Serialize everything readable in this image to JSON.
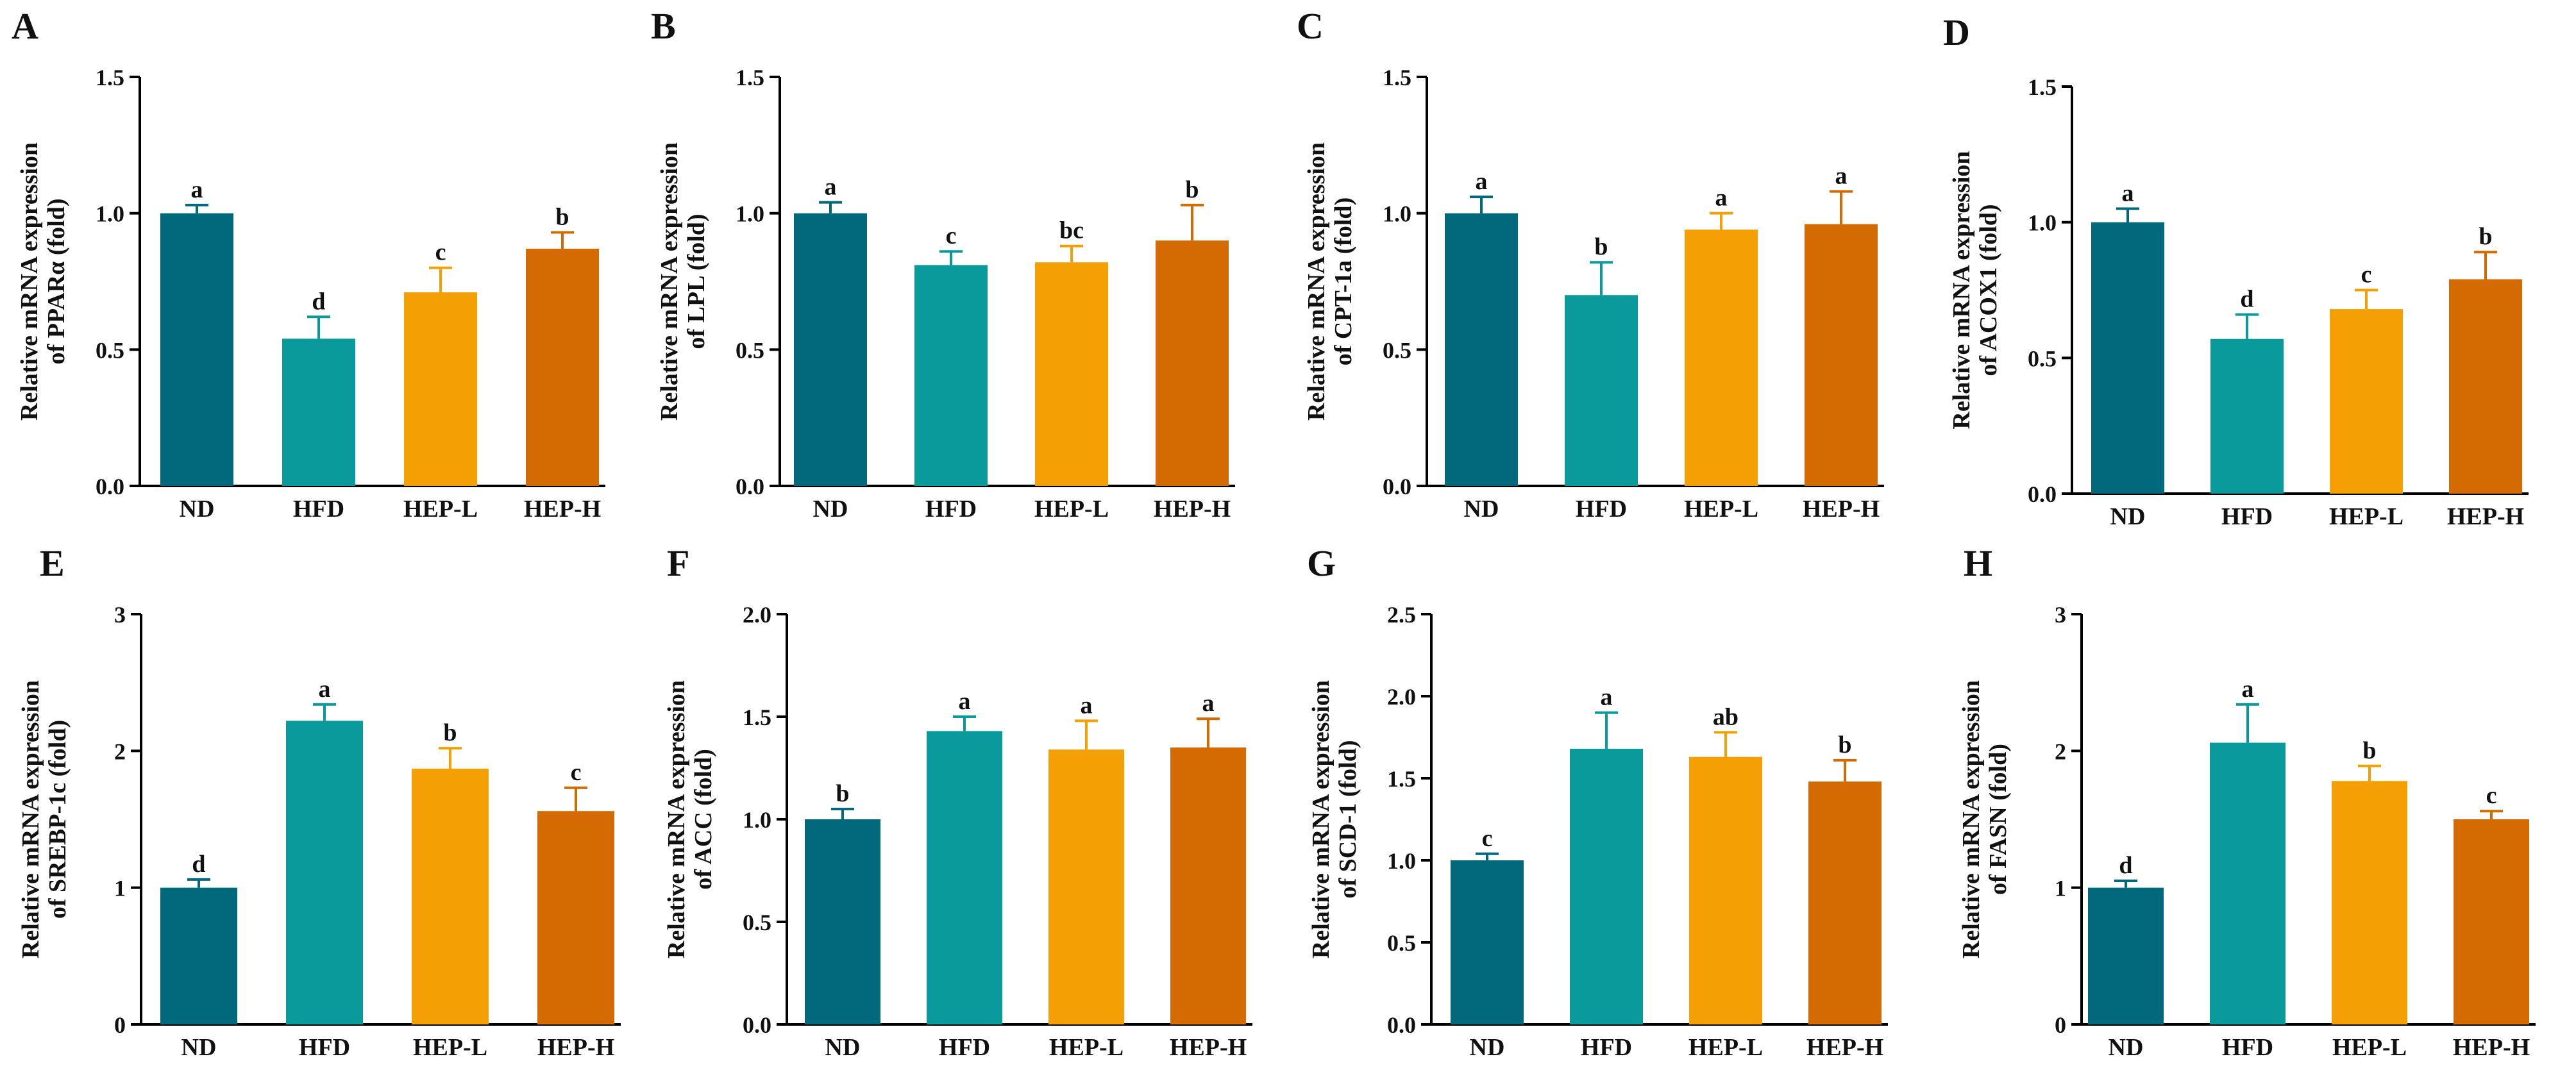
{
  "chart_data": [
    {
      "panel": "A",
      "type": "bar",
      "ylabel_line1": "Relative mRNA expression",
      "ylabel_line2": "of PPARα (fold)",
      "categories": [
        "ND",
        "HFD",
        "HEP-L",
        "HEP-H"
      ],
      "values": [
        1.0,
        0.54,
        0.71,
        0.87
      ],
      "errors": [
        0.03,
        0.08,
        0.09,
        0.06
      ],
      "letters": [
        "a",
        "d",
        "c",
        "b"
      ],
      "ylim": [
        0,
        1.5
      ],
      "ticks": [
        "0.0",
        "0.5",
        "1.0",
        "1.5"
      ]
    },
    {
      "panel": "B",
      "type": "bar",
      "ylabel_line1": "Relative mRNA expression",
      "ylabel_line2": "of LPL (fold)",
      "categories": [
        "ND",
        "HFD",
        "HEP-L",
        "HEP-H"
      ],
      "values": [
        1.0,
        0.81,
        0.82,
        0.9
      ],
      "errors": [
        0.04,
        0.05,
        0.06,
        0.13
      ],
      "letters": [
        "a",
        "c",
        "bc",
        "b"
      ],
      "ylim": [
        0,
        1.5
      ],
      "ticks": [
        "0.0",
        "0.5",
        "1.0",
        "1.5"
      ]
    },
    {
      "panel": "C",
      "type": "bar",
      "ylabel_line1": "Relative mRNA expression",
      "ylabel_line2": "of CPT-1a (fold)",
      "categories": [
        "ND",
        "HFD",
        "HEP-L",
        "HEP-H"
      ],
      "values": [
        1.0,
        0.7,
        0.94,
        0.96
      ],
      "errors": [
        0.06,
        0.12,
        0.06,
        0.12
      ],
      "letters": [
        "a",
        "b",
        "a",
        "a"
      ],
      "ylim": [
        0,
        1.5
      ],
      "ticks": [
        "0.0",
        "0.5",
        "1.0",
        "1.5"
      ]
    },
    {
      "panel": "D",
      "type": "bar",
      "ylabel_line1": "Relative mRNA expression",
      "ylabel_line2": "of ACOX1 (fold)",
      "categories": [
        "ND",
        "HFD",
        "HEP-L",
        "HEP-H"
      ],
      "values": [
        1.0,
        0.57,
        0.68,
        0.79
      ],
      "errors": [
        0.05,
        0.09,
        0.07,
        0.1
      ],
      "letters": [
        "a",
        "d",
        "c",
        "b"
      ],
      "ylim": [
        0,
        1.5
      ],
      "ticks": [
        "0.0",
        "0.5",
        "1.0",
        "1.5"
      ]
    },
    {
      "panel": "E",
      "type": "bar",
      "ylabel_line1": "Relative mRNA expression",
      "ylabel_line2": "of SREBP-1c (fold)",
      "categories": [
        "ND",
        "HFD",
        "HEP-L",
        "HEP-H"
      ],
      "values": [
        1.0,
        2.22,
        1.87,
        1.56
      ],
      "errors": [
        0.06,
        0.12,
        0.15,
        0.17
      ],
      "letters": [
        "d",
        "a",
        "b",
        "c"
      ],
      "ylim": [
        0,
        3
      ],
      "ticks": [
        "0",
        "1",
        "2",
        "3"
      ]
    },
    {
      "panel": "F",
      "type": "bar",
      "ylabel_line1": "Relative mRNA expression",
      "ylabel_line2": "of ACC (fold)",
      "categories": [
        "ND",
        "HFD",
        "HEP-L",
        "HEP-H"
      ],
      "values": [
        1.0,
        1.43,
        1.34,
        1.35
      ],
      "errors": [
        0.05,
        0.07,
        0.14,
        0.14
      ],
      "letters": [
        "b",
        "a",
        "a",
        "a"
      ],
      "ylim": [
        0,
        2.0
      ],
      "ticks": [
        "0.0",
        "0.5",
        "1.0",
        "1.5",
        "2.0"
      ]
    },
    {
      "panel": "G",
      "type": "bar",
      "ylabel_line1": "Relative mRNA expression",
      "ylabel_line2": "of SCD-1 (fold)",
      "categories": [
        "ND",
        "HFD",
        "HEP-L",
        "HEP-H"
      ],
      "values": [
        1.0,
        1.68,
        1.63,
        1.48
      ],
      "errors": [
        0.04,
        0.22,
        0.15,
        0.13
      ],
      "letters": [
        "c",
        "a",
        "ab",
        "b"
      ],
      "ylim": [
        0,
        2.5
      ],
      "ticks": [
        "0.0",
        "0.5",
        "1.0",
        "1.5",
        "2.0",
        "2.5"
      ]
    },
    {
      "panel": "H",
      "type": "bar",
      "ylabel_line1": "Relative mRNA expression",
      "ylabel_line2": "of FASN (fold)",
      "categories": [
        "ND",
        "HFD",
        "HEP-L",
        "HEP-H"
      ],
      "values": [
        1.0,
        2.06,
        1.78,
        1.5
      ],
      "errors": [
        0.05,
        0.28,
        0.11,
        0.06
      ],
      "letters": [
        "d",
        "a",
        "b",
        "c"
      ],
      "ylim": [
        0,
        3
      ],
      "ticks": [
        "0",
        "1",
        "2",
        "3"
      ]
    }
  ],
  "colors": {
    "bars": [
      "#02687b",
      "#0b9a9b",
      "#f4a005",
      "#d46b02"
    ],
    "errorbars": [
      "#02687b",
      "#0b9a9b",
      "#f4a005",
      "#d46b02"
    ],
    "axis": "#000000"
  }
}
